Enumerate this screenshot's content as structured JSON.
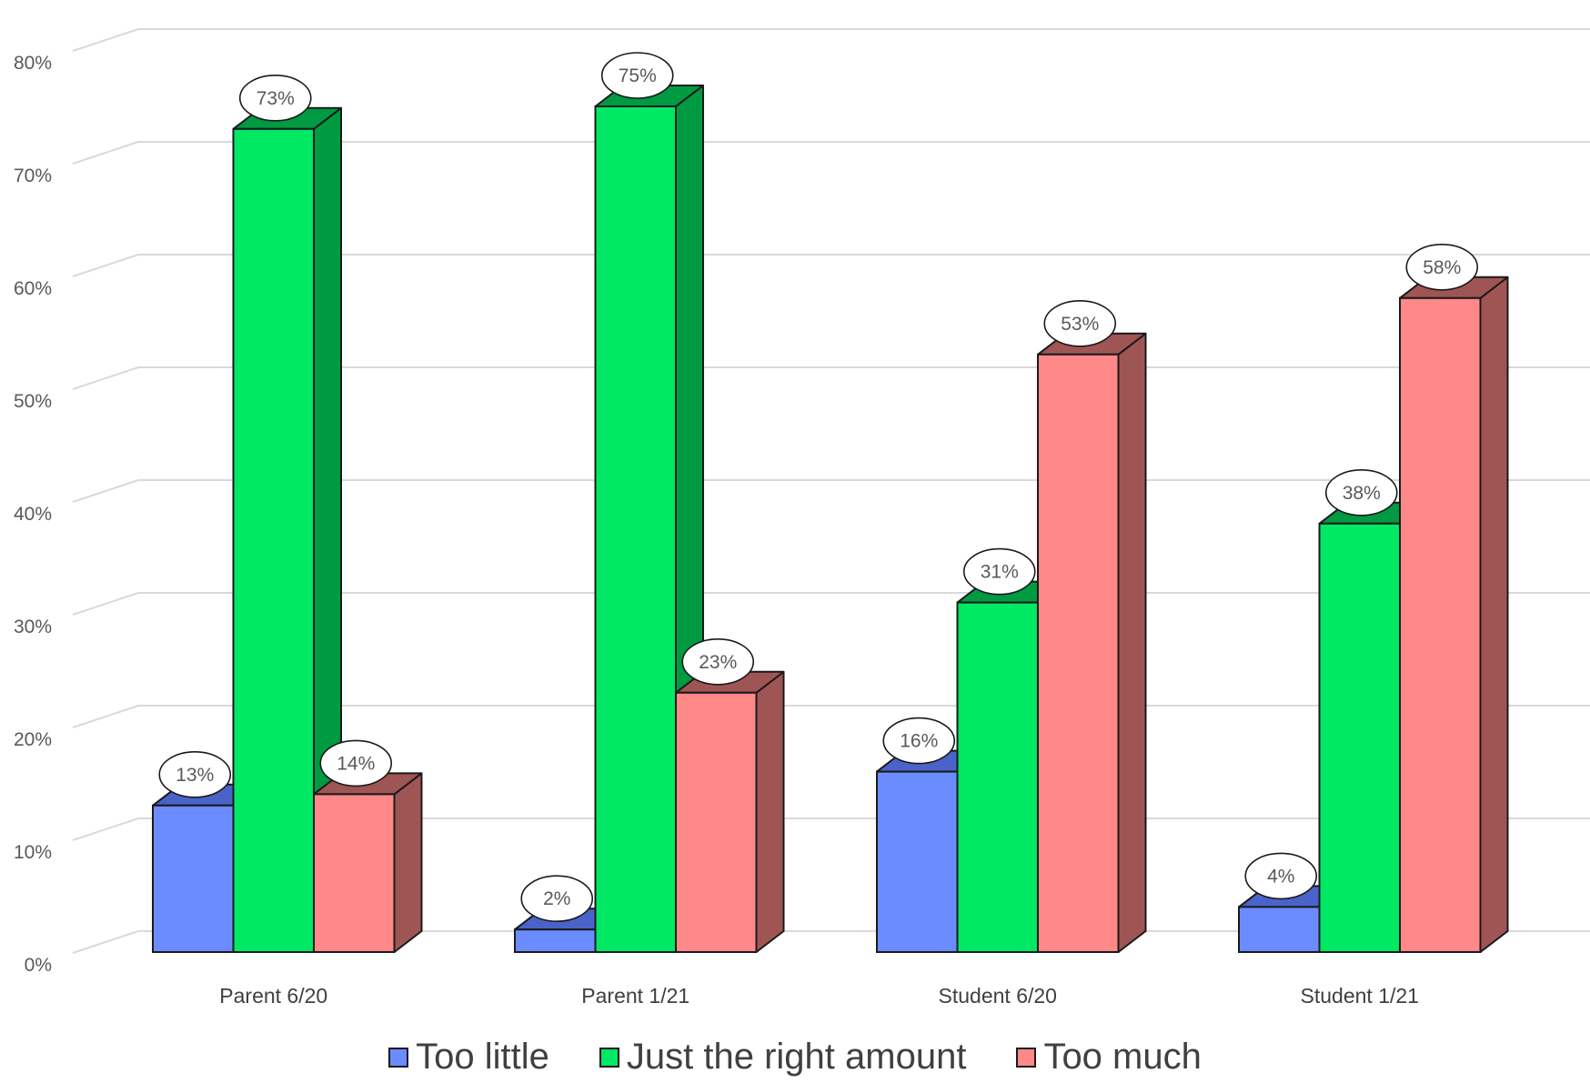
{
  "chart_data": {
    "type": "bar",
    "categories": [
      "Parent 6/20",
      "Parent 1/21",
      "Student 6/20",
      "Student 1/21"
    ],
    "series": [
      {
        "name": "Too little",
        "values": [
          13,
          2,
          16,
          4
        ],
        "labels": [
          "13%",
          "2%",
          "16%",
          "4%"
        ],
        "color": "#6b8cff",
        "side_color": "#4a63c9"
      },
      {
        "name": "Just the right amount",
        "values": [
          73,
          75,
          31,
          38
        ],
        "labels": [
          "73%",
          "75%",
          "31%",
          "38%"
        ],
        "color": "#00e864",
        "side_color": "#009a42"
      },
      {
        "name": "Too much",
        "values": [
          14,
          23,
          53,
          58
        ],
        "labels": [
          "14%",
          "23%",
          "53%",
          "58%"
        ],
        "color": "#ff8888",
        "side_color": "#a05555"
      }
    ],
    "y_ticks": [
      "0%",
      "10%",
      "20%",
      "30%",
      "40%",
      "50%",
      "60%",
      "70%",
      "80%"
    ],
    "ylim": [
      0,
      80
    ],
    "legend_position": "bottom",
    "grid": true,
    "three_d": true
  }
}
